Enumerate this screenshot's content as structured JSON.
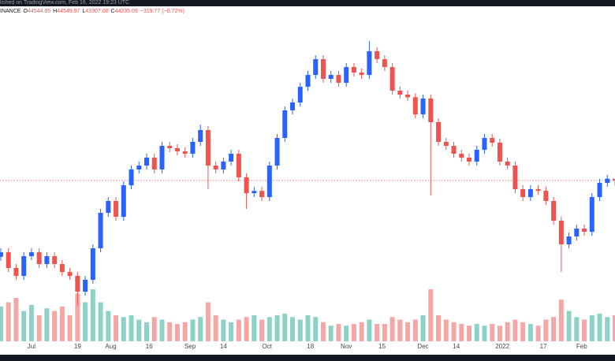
{
  "banner": "lished on TradingView.com, Feb 16, 2022 19:23 UTC",
  "header": {
    "symbol": "INANCE",
    "ohlc": [
      {
        "label": "O",
        "value": "44544.85"
      },
      {
        "label": "H",
        "value": "44549.97"
      },
      {
        "label": "L",
        "value": "43307.00"
      },
      {
        "label": "C",
        "value": "44235.09"
      }
    ],
    "change": "−319.77 (−0.72%)"
  },
  "chart_data": {
    "type": "candlestick",
    "x": [
      -12,
      -9,
      -6,
      -3,
      0,
      3,
      6,
      9,
      12,
      15,
      18,
      21,
      24,
      27,
      30,
      33,
      36,
      39,
      42,
      45,
      48,
      51,
      54,
      57,
      60,
      63,
      66,
      69,
      72,
      75,
      78,
      81,
      84,
      87,
      90,
      93,
      96,
      99,
      102,
      105,
      108,
      111,
      114,
      117,
      120,
      123,
      126,
      129,
      132,
      135,
      138,
      141,
      144,
      147,
      150,
      153,
      156,
      159,
      162,
      165,
      168,
      171,
      174,
      177,
      180,
      183,
      186,
      189,
      192,
      195,
      198,
      201,
      204,
      207,
      210,
      213,
      216,
      219,
      222,
      225,
      228
    ],
    "open": [
      30800,
      31600,
      28830,
      27440,
      30910,
      31600,
      29520,
      30910,
      29520,
      28130,
      27440,
      24660,
      26750,
      32300,
      38540,
      40630,
      37850,
      43400,
      46180,
      46870,
      48260,
      46180,
      50340,
      49930,
      49370,
      48950,
      51040,
      53120,
      46870,
      46180,
      47570,
      48950,
      44790,
      42010,
      42400,
      41320,
      46870,
      51730,
      56590,
      57980,
      60750,
      62830,
      65610,
      62140,
      62830,
      61450,
      64220,
      63250,
      62830,
      67000,
      65610,
      64220,
      60060,
      59360,
      58900,
      55890,
      58670,
      54510,
      51040,
      50340,
      48950,
      48260,
      47570,
      49650,
      51730,
      50900,
      47570,
      46870,
      42710,
      41320,
      42710,
      42430,
      40630,
      37160,
      32990,
      34380,
      35770,
      35200,
      41320,
      43820,
      44544.85
    ],
    "high": [
      32300,
      32300,
      29530,
      31610,
      32300,
      32300,
      31610,
      31610,
      30220,
      28830,
      28140,
      27450,
      33000,
      39240,
      41330,
      41330,
      44100,
      46880,
      47570,
      48960,
      48960,
      51040,
      51040,
      50630,
      50070,
      51740,
      54090,
      53820,
      47570,
      48270,
      49650,
      49650,
      45490,
      43100,
      43100,
      47570,
      52430,
      57290,
      58680,
      61450,
      63530,
      66310,
      66310,
      63530,
      63530,
      64920,
      64920,
      63950,
      68800,
      67700,
      66310,
      64920,
      60760,
      60060,
      59600,
      59370,
      59370,
      55210,
      51740,
      51040,
      49650,
      48960,
      50350,
      52430,
      52430,
      51600,
      48270,
      47570,
      43410,
      43410,
      43410,
      43130,
      41330,
      37860,
      35080,
      36470,
      36470,
      42020,
      44520,
      45240,
      44549.97
    ],
    "low": [
      30100,
      28130,
      26740,
      26740,
      30210,
      28820,
      28820,
      28820,
      27430,
      26740,
      22200,
      23960,
      26050,
      31600,
      37840,
      37150,
      37150,
      42700,
      45480,
      46170,
      45480,
      45480,
      49230,
      48670,
      48250,
      48250,
      50340,
      42700,
      45480,
      45480,
      46870,
      44090,
      39240,
      41310,
      40620,
      40620,
      46170,
      51030,
      55890,
      57280,
      60050,
      62130,
      61440,
      61440,
      60750,
      60750,
      62550,
      62130,
      62130,
      64910,
      63520,
      59360,
      58660,
      58200,
      55190,
      55190,
      41600,
      50340,
      49640,
      48250,
      47560,
      46870,
      46870,
      48950,
      50200,
      46870,
      46170,
      42010,
      40620,
      40620,
      41730,
      39930,
      36460,
      28130,
      32290,
      33680,
      34500,
      34500,
      40620,
      43120,
      43307
    ],
    "close": [
      31600,
      28830,
      27440,
      30910,
      31600,
      29520,
      30910,
      29520,
      28130,
      27440,
      24660,
      26750,
      32300,
      38540,
      40630,
      37850,
      43400,
      46180,
      46870,
      48260,
      46180,
      50340,
      49930,
      49370,
      48950,
      51040,
      53120,
      46870,
      46180,
      47570,
      48950,
      44790,
      42010,
      42400,
      41320,
      46870,
      51730,
      56590,
      57980,
      60750,
      62830,
      65610,
      62140,
      62830,
      61450,
      64220,
      63250,
      62830,
      67000,
      65610,
      64220,
      60060,
      59360,
      58900,
      55890,
      58670,
      54510,
      51040,
      50340,
      48950,
      48260,
      47570,
      49650,
      51730,
      50900,
      47570,
      46870,
      42710,
      41320,
      42710,
      42430,
      40630,
      37160,
      32990,
      34380,
      35770,
      35200,
      41320,
      43820,
      44544.85,
      44235.09
    ],
    "volume": [
      40,
      45,
      50,
      35,
      42,
      30,
      38,
      35,
      40,
      30,
      55,
      45,
      60,
      45,
      35,
      30,
      28,
      30,
      25,
      22,
      28,
      25,
      22,
      20,
      22,
      25,
      28,
      45,
      30,
      25,
      22,
      25,
      28,
      30,
      25,
      28,
      30,
      32,
      28,
      25,
      30,
      28,
      22,
      18,
      20,
      18,
      20,
      22,
      25,
      20,
      20,
      28,
      25,
      22,
      25,
      30,
      60,
      30,
      25,
      22,
      20,
      18,
      20,
      18,
      20,
      18,
      22,
      25,
      22,
      20,
      18,
      25,
      28,
      48,
      35,
      28,
      25,
      30,
      32,
      28,
      30
    ],
    "up_color": "#2962ff",
    "down_color": "#ef5350",
    "volume_up_color": "#8ed2c7",
    "volume_down_color": "#f5a7a5",
    "last_price": 44235.09,
    "xlim": [
      -12.3,
      228
    ],
    "ylim": [
      20500,
      73250
    ],
    "volume_lim": [
      0,
      100
    ],
    "xticks": [
      {
        "value": 0,
        "label": "Jul"
      },
      {
        "value": 18,
        "label": "19"
      },
      {
        "value": 31,
        "label": "Aug"
      },
      {
        "value": 46,
        "label": "16"
      },
      {
        "value": 62,
        "label": "Sep"
      },
      {
        "value": 75,
        "label": "14"
      },
      {
        "value": 92,
        "label": "Oct"
      },
      {
        "value": 109,
        "label": "18"
      },
      {
        "value": 123,
        "label": "Nov"
      },
      {
        "value": 137,
        "label": "15"
      },
      {
        "value": 153,
        "label": "Dec"
      },
      {
        "value": 166,
        "label": "14"
      },
      {
        "value": 184,
        "label": "2022"
      },
      {
        "value": 200,
        "label": "17"
      },
      {
        "value": 215,
        "label": "Feb"
      }
    ]
  }
}
